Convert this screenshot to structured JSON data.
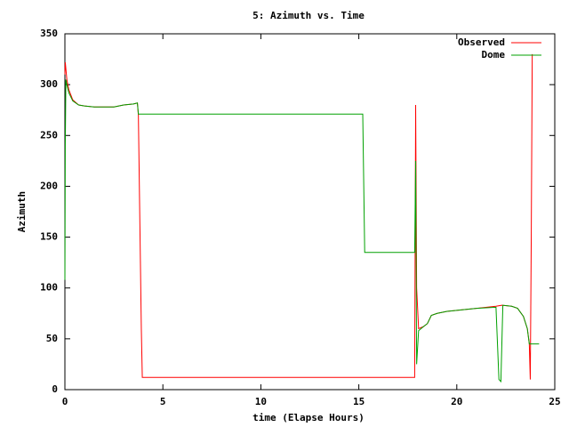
{
  "chart_data": {
    "type": "line",
    "title": "5: Azimuth vs. Time",
    "x_label": "time (Elapse Hours)",
    "y_label": "Azimuth",
    "xlim": [
      0,
      25
    ],
    "xticks": [
      0,
      5,
      10,
      15,
      20,
      25
    ],
    "ylim": [
      0,
      350
    ],
    "yticks": [
      0,
      50,
      100,
      150,
      200,
      250,
      300,
      350
    ],
    "legend": "top-right",
    "series": [
      {
        "name": "Observed",
        "color": "#ff0000",
        "x": [
          0,
          0.02,
          0.1,
          0.2,
          0.4,
          0.7,
          1.0,
          1.5,
          2.0,
          2.5,
          3.0,
          3.5,
          3.7,
          3.75,
          3.8,
          3.9,
          3.95,
          17.85,
          17.9,
          17.95,
          18.05,
          18.3,
          18.5,
          18.7,
          19.0,
          19.5,
          20.0,
          21.0,
          22.0,
          22.3,
          22.8,
          23.1,
          23.4,
          23.6,
          23.7,
          23.75,
          23.8,
          23.85
        ],
        "values": [
          310,
          322,
          305,
          295,
          285,
          280,
          279,
          278,
          278,
          278,
          280,
          281,
          282,
          270,
          200,
          60,
          12,
          12,
          280,
          100,
          60,
          62,
          65,
          73,
          75,
          77,
          78,
          80,
          82,
          83,
          82,
          80,
          72,
          60,
          45,
          10,
          150,
          330
        ]
      },
      {
        "name": "Dome",
        "color": "#00a000",
        "x": [
          0,
          0.02,
          0.05,
          0.1,
          0.2,
          0.4,
          0.7,
          1.0,
          1.5,
          2.0,
          2.5,
          3.0,
          3.5,
          3.7,
          3.75,
          15.2,
          15.3,
          17.85,
          17.9,
          17.95,
          18.05,
          18.3,
          18.5,
          18.7,
          19.0,
          19.5,
          20.0,
          21.0,
          22.0,
          22.15,
          22.25,
          22.35,
          22.8,
          23.1,
          23.4,
          23.6,
          23.7,
          24.2
        ],
        "values": [
          108,
          240,
          305,
          300,
          292,
          284,
          280,
          279,
          278,
          278,
          278,
          280,
          281,
          282,
          271,
          271,
          135,
          135,
          225,
          25,
          58,
          62,
          65,
          73,
          75,
          77,
          78,
          80,
          81,
          10,
          8,
          83,
          82,
          80,
          72,
          60,
          45,
          45
        ]
      }
    ]
  }
}
